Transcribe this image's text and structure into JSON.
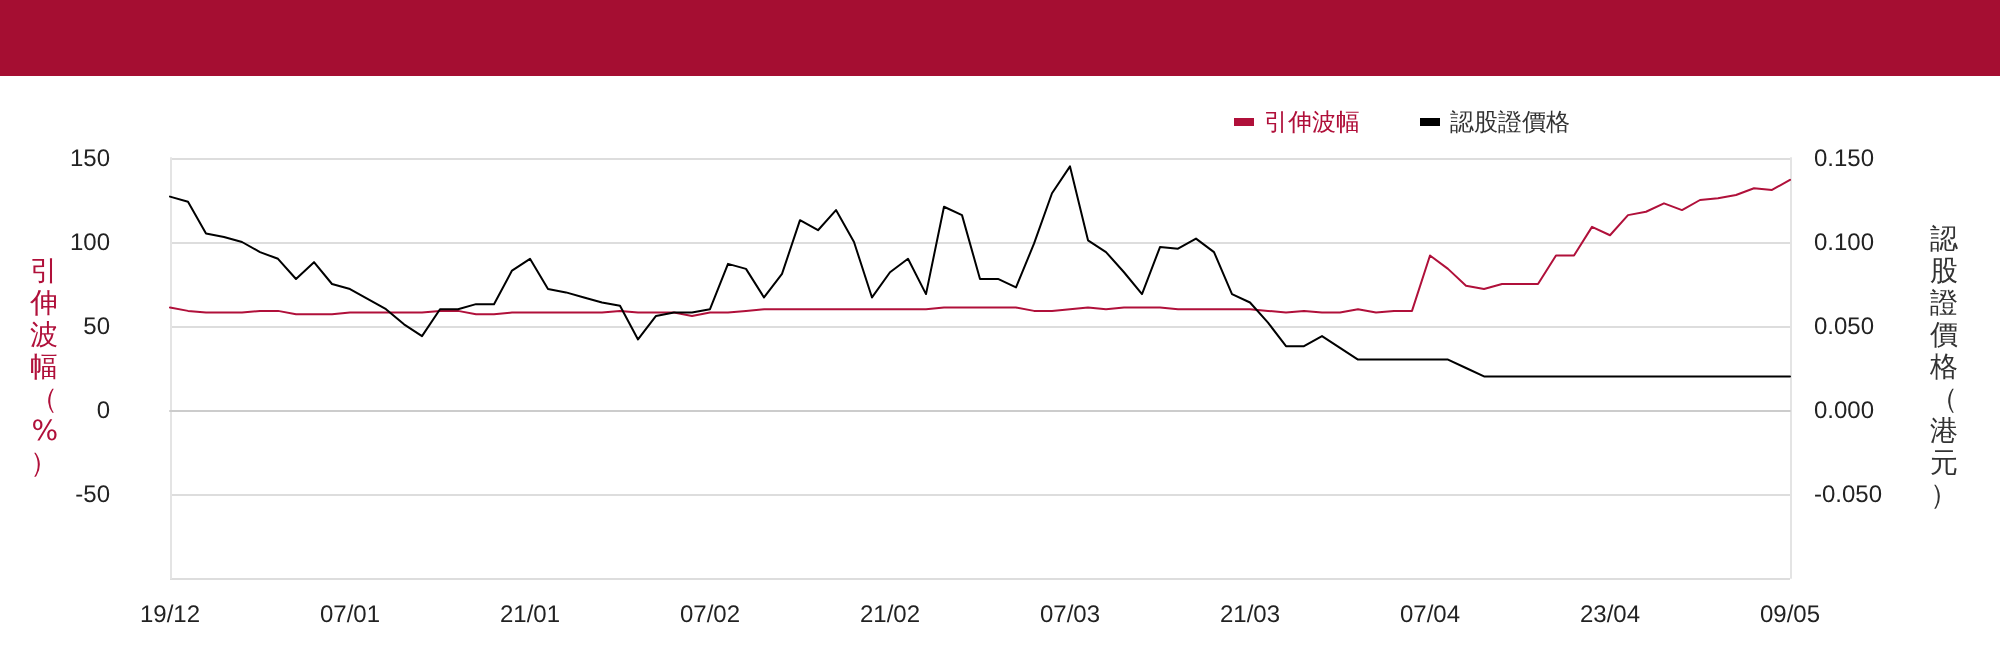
{
  "chart_data": {
    "type": "line",
    "categories": [
      "19/12",
      null,
      null,
      null,
      null,
      null,
      null,
      null,
      null,
      null,
      "07/01",
      null,
      null,
      null,
      null,
      null,
      null,
      null,
      null,
      null,
      "21/01",
      null,
      null,
      null,
      null,
      null,
      null,
      null,
      null,
      null,
      "07/02",
      null,
      null,
      null,
      null,
      null,
      null,
      null,
      null,
      null,
      "21/02",
      null,
      null,
      null,
      null,
      null,
      null,
      null,
      null,
      null,
      "07/03",
      null,
      null,
      null,
      null,
      null,
      null,
      null,
      null,
      null,
      "21/03",
      null,
      null,
      null,
      null,
      null,
      null,
      null,
      null,
      null,
      "07/04",
      null,
      null,
      null,
      null,
      null,
      null,
      null,
      null,
      null,
      "23/04",
      null,
      null,
      null,
      null,
      null,
      null,
      null,
      null,
      null,
      "09/05"
    ],
    "ylabel": "引伸波幅（%）",
    "y2label": "認股證價格（港元）",
    "series": [
      {
        "name": "引伸波幅",
        "color": "#b0103a",
        "values": [
          61,
          59,
          58,
          58,
          58,
          59,
          59,
          57,
          57,
          57,
          58,
          58,
          58,
          58,
          58,
          59,
          59,
          57,
          57,
          58,
          58,
          58,
          58,
          58,
          58,
          59,
          58,
          58,
          58,
          56,
          58,
          58,
          59,
          60,
          60,
          60,
          60,
          60,
          60,
          60,
          60,
          60,
          60,
          61,
          61,
          61,
          61,
          61,
          59,
          59,
          60,
          61,
          60,
          61,
          61,
          61,
          60,
          60,
          60,
          60,
          60,
          59,
          58,
          59,
          58,
          58,
          60,
          58,
          59,
          59,
          92,
          84,
          74,
          72,
          75,
          75,
          75,
          92,
          92,
          109,
          104,
          116,
          118,
          123,
          119,
          125,
          126,
          128,
          132,
          131,
          137
        ]
      },
      {
        "name": "認股證價格",
        "color": "#000000",
        "axis": "y2",
        "values": [
          0.127,
          0.124,
          0.105,
          0.103,
          0.1,
          0.094,
          0.09,
          0.078,
          0.088,
          0.075,
          0.072,
          0.066,
          0.06,
          0.051,
          0.044,
          0.06,
          0.06,
          0.063,
          0.063,
          0.083,
          0.09,
          0.072,
          0.07,
          0.067,
          0.064,
          0.062,
          0.042,
          0.056,
          0.058,
          0.058,
          0.06,
          0.087,
          0.084,
          0.067,
          0.081,
          0.113,
          0.107,
          0.119,
          0.1,
          0.067,
          0.082,
          0.09,
          0.069,
          0.121,
          0.116,
          0.078,
          0.078,
          0.073,
          0.099,
          0.129,
          0.145,
          0.101,
          0.094,
          0.082,
          0.069,
          0.097,
          0.096,
          0.102,
          0.094,
          0.069,
          0.064,
          0.052,
          0.038,
          0.038,
          0.044,
          0.037,
          0.03,
          0.03,
          0.03,
          0.03,
          0.03,
          0.03,
          0.025,
          0.02,
          0.02,
          0.02,
          0.02,
          0.02,
          0.02,
          0.02,
          0.02,
          0.02,
          0.02,
          0.02,
          0.02,
          0.02,
          0.02,
          0.02,
          0.02,
          0.02,
          0.02
        ]
      }
    ],
    "ylim": [
      -100,
      150
    ],
    "yticks": [
      {
        "value": -100,
        "label": null
      },
      -50,
      0,
      50,
      100,
      150
    ],
    "y2lim": [
      -0.1,
      0.15
    ],
    "y2ticks": [
      {
        "value": -0.1,
        "label": null
      },
      {
        "value": -0.05,
        "label": "-0.050"
      },
      {
        "value": 0,
        "label": "0.000"
      },
      {
        "value": 0.05,
        "label": "0.050"
      },
      {
        "value": 0.1,
        "label": "0.100"
      },
      {
        "value": 0.15,
        "label": "0.150"
      }
    ],
    "grid": "y",
    "legend": "top right",
    "marker": "none",
    "line_style": "solid"
  }
}
